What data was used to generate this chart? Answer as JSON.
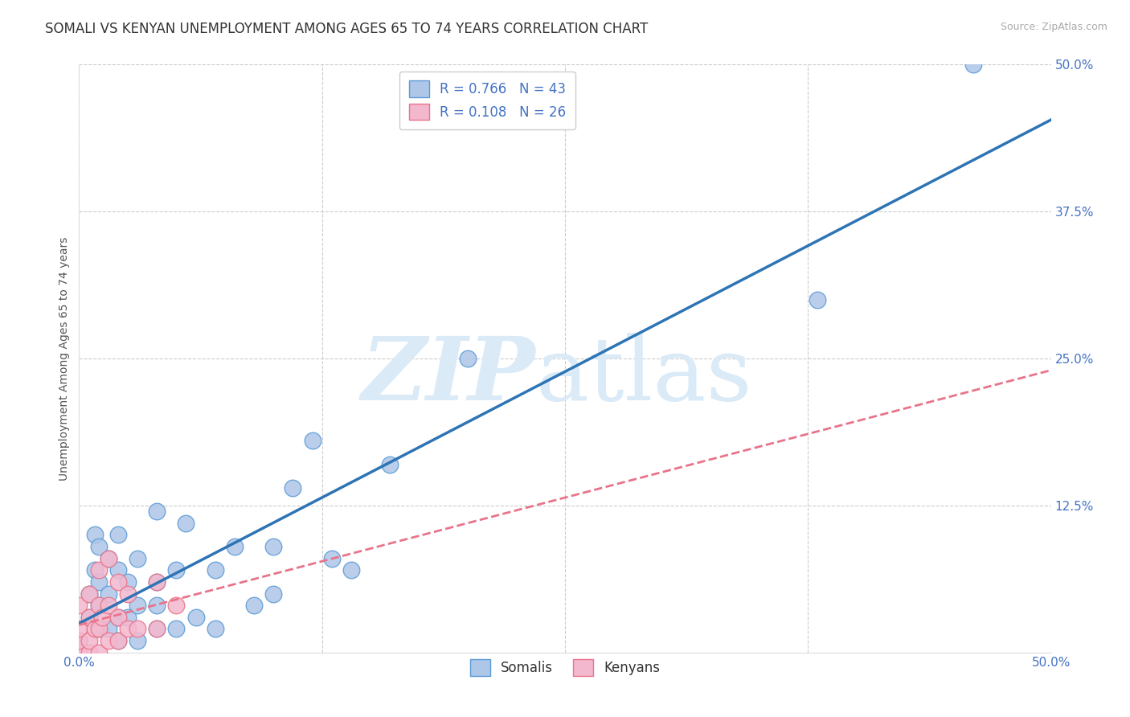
{
  "title": "SOMALI VS KENYAN UNEMPLOYMENT AMONG AGES 65 TO 74 YEARS CORRELATION CHART",
  "source": "Source: ZipAtlas.com",
  "ylabel": "Unemployment Among Ages 65 to 74 years",
  "xlim": [
    0.0,
    0.5
  ],
  "ylim": [
    0.0,
    0.5
  ],
  "xticks": [
    0.0,
    0.125,
    0.25,
    0.375,
    0.5
  ],
  "yticks": [
    0.0,
    0.125,
    0.25,
    0.375,
    0.5
  ],
  "xticklabels": [
    "0.0%",
    "",
    "",
    "",
    "50.0%"
  ],
  "yticklabels": [
    "",
    "12.5%",
    "25.0%",
    "37.5%",
    "50.0%"
  ],
  "grid_color": "#cccccc",
  "background_color": "#ffffff",
  "somali_color": "#aec6e8",
  "somali_edge_color": "#5b9bd5",
  "kenyan_color": "#f4b8ce",
  "kenyan_edge_color": "#e8748a",
  "somali_R": 0.766,
  "somali_N": 43,
  "kenyan_R": 0.108,
  "kenyan_N": 26,
  "legend_text_color": "#4472c4",
  "watermark_color": "#daeaf7",
  "somali_line_color": "#2E74B5",
  "kenyan_line_color": "#e8748a",
  "somali_x": [
    0.0,
    0.005,
    0.005,
    0.008,
    0.008,
    0.01,
    0.01,
    0.01,
    0.01,
    0.015,
    0.015,
    0.015,
    0.02,
    0.02,
    0.02,
    0.02,
    0.025,
    0.025,
    0.03,
    0.03,
    0.03,
    0.04,
    0.04,
    0.04,
    0.04,
    0.05,
    0.05,
    0.055,
    0.06,
    0.07,
    0.07,
    0.08,
    0.09,
    0.1,
    0.1,
    0.11,
    0.12,
    0.13,
    0.14,
    0.16,
    0.2,
    0.38,
    0.46
  ],
  "somali_y": [
    0.01,
    0.03,
    0.05,
    0.07,
    0.1,
    0.02,
    0.04,
    0.06,
    0.09,
    0.02,
    0.05,
    0.08,
    0.01,
    0.03,
    0.07,
    0.1,
    0.03,
    0.06,
    0.01,
    0.04,
    0.08,
    0.02,
    0.04,
    0.06,
    0.12,
    0.02,
    0.07,
    0.11,
    0.03,
    0.02,
    0.07,
    0.09,
    0.04,
    0.05,
    0.09,
    0.14,
    0.18,
    0.08,
    0.07,
    0.16,
    0.25,
    0.3,
    0.5
  ],
  "kenyan_x": [
    0.0,
    0.0,
    0.0,
    0.0,
    0.005,
    0.005,
    0.005,
    0.005,
    0.008,
    0.01,
    0.01,
    0.01,
    0.01,
    0.012,
    0.015,
    0.015,
    0.015,
    0.02,
    0.02,
    0.02,
    0.025,
    0.025,
    0.03,
    0.04,
    0.04,
    0.05
  ],
  "kenyan_y": [
    0.0,
    0.01,
    0.02,
    0.04,
    0.0,
    0.01,
    0.03,
    0.05,
    0.02,
    0.0,
    0.02,
    0.04,
    0.07,
    0.03,
    0.01,
    0.04,
    0.08,
    0.01,
    0.03,
    0.06,
    0.02,
    0.05,
    0.02,
    0.02,
    0.06,
    0.04
  ],
  "title_fontsize": 12,
  "axis_label_fontsize": 10,
  "tick_fontsize": 11,
  "legend_fontsize": 12
}
